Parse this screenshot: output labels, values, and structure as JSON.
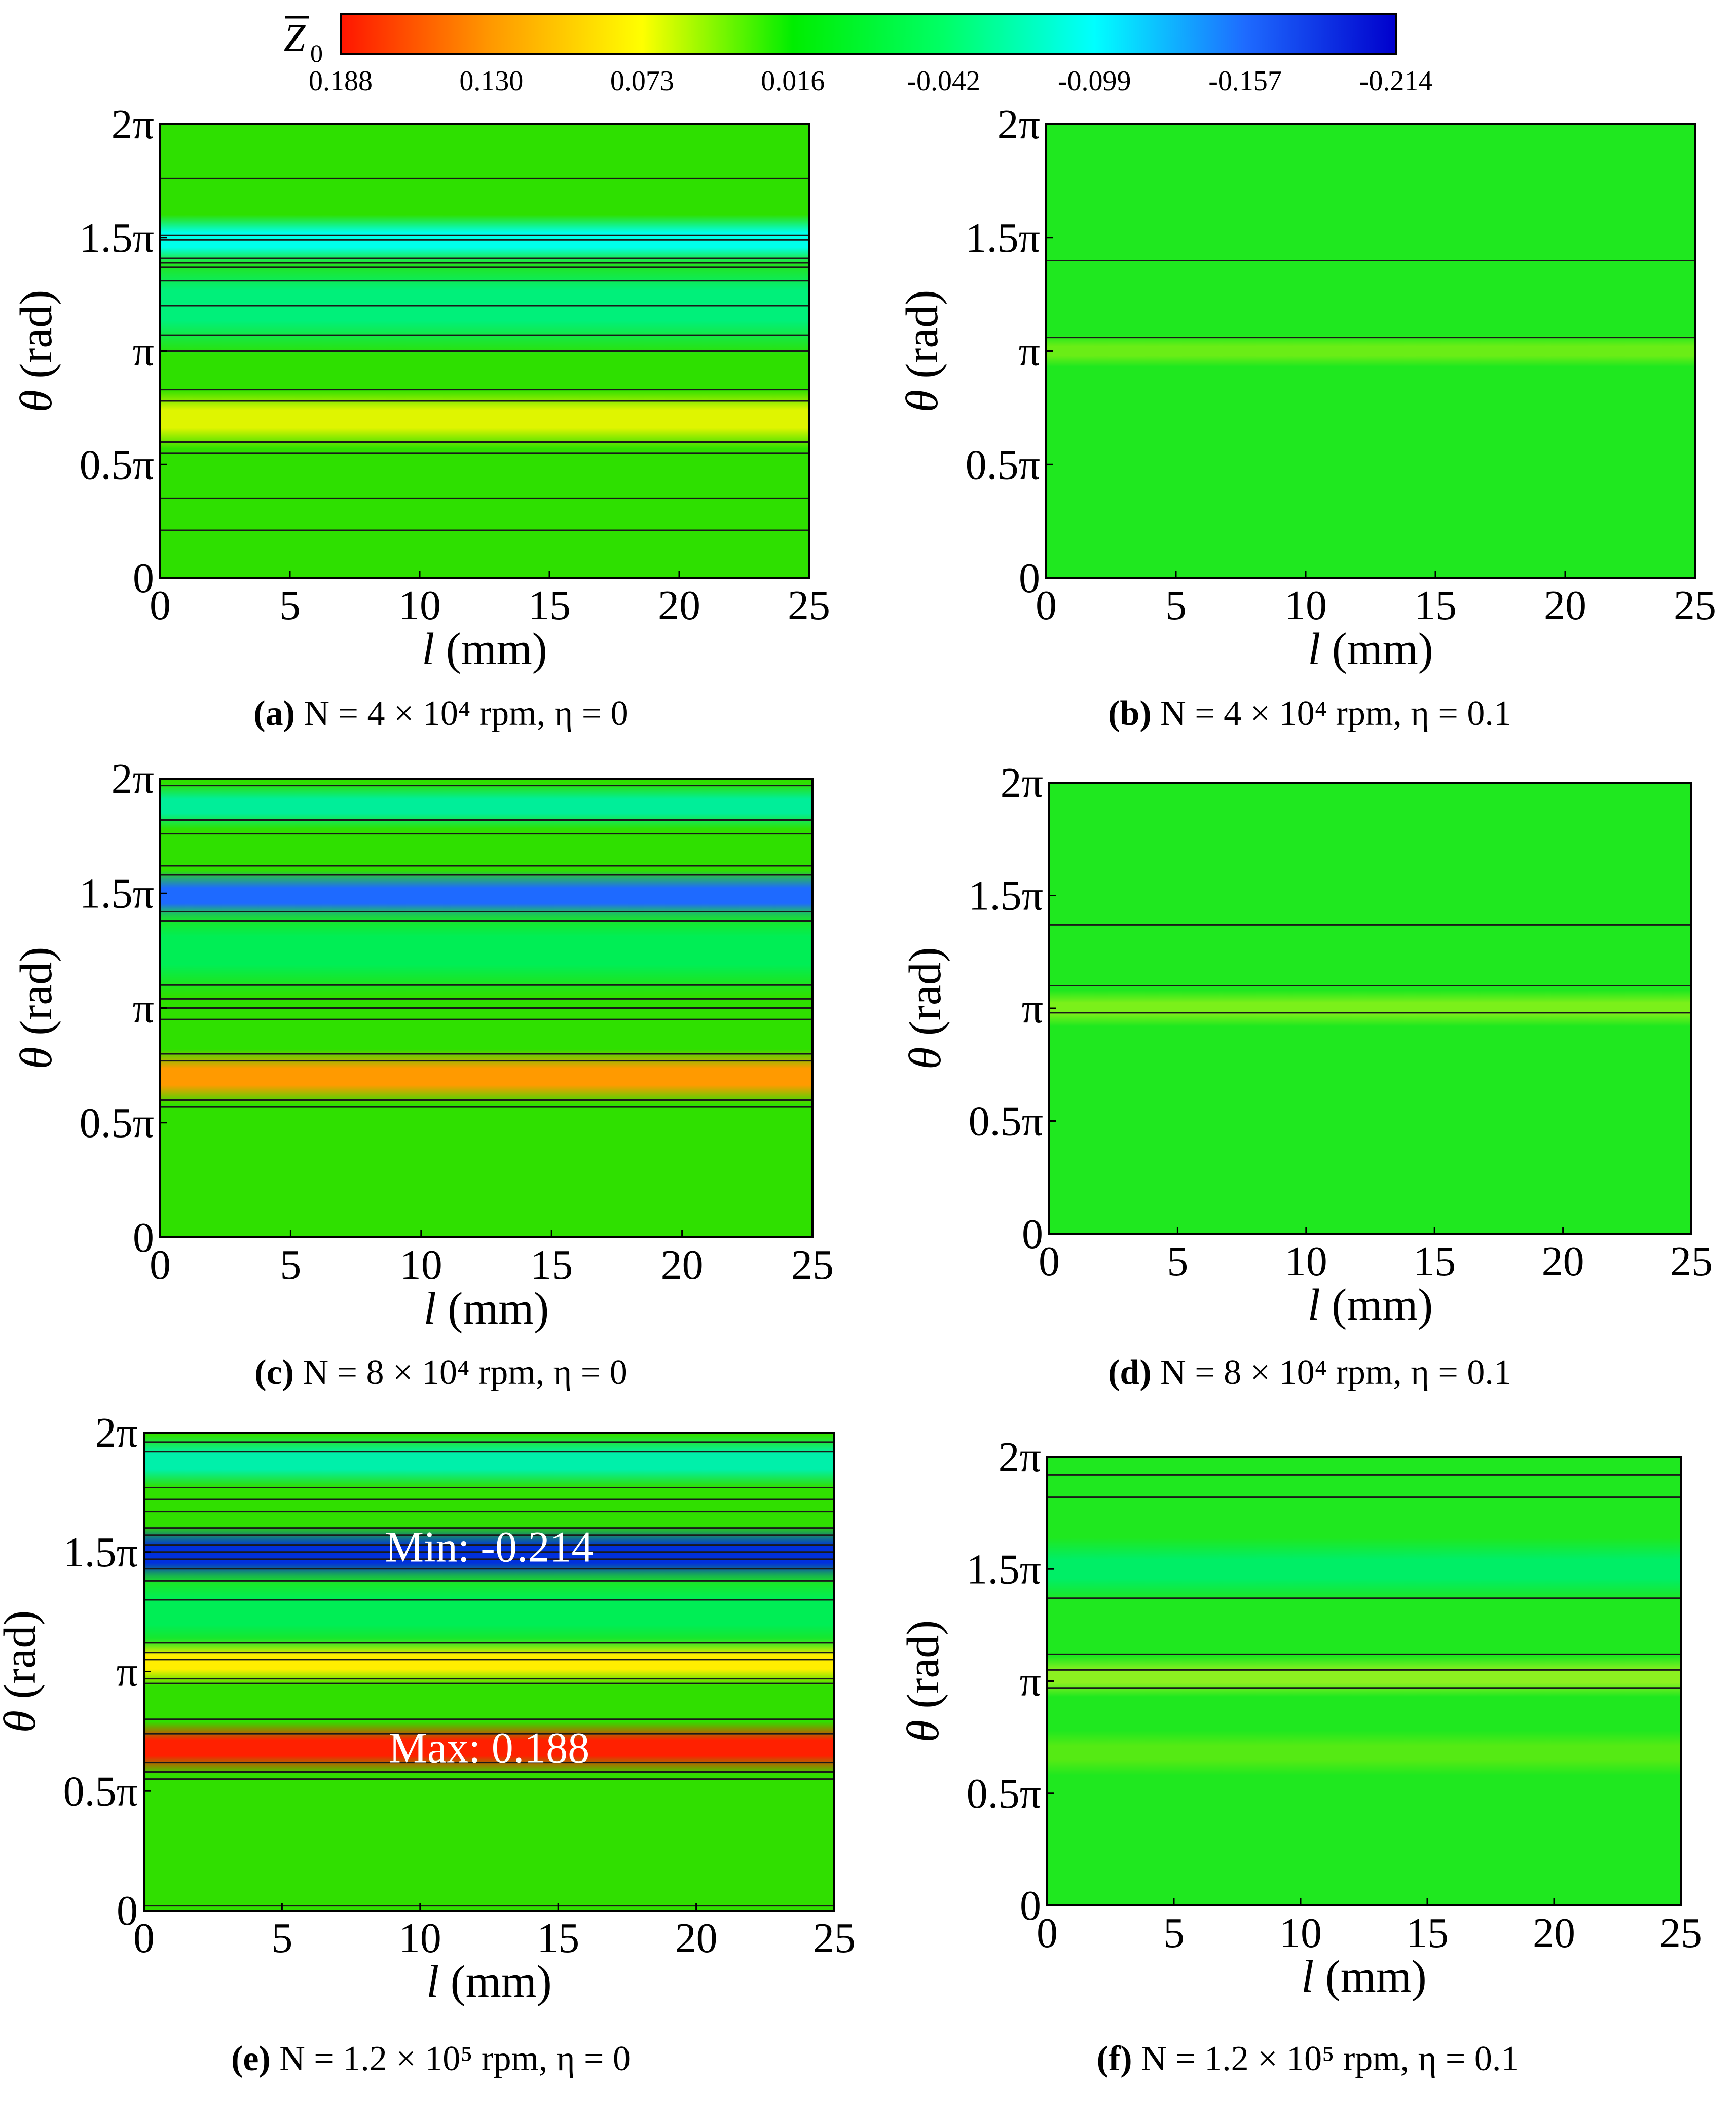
{
  "colorbar": {
    "symbol": "Z",
    "subscript": "0",
    "ticks": [
      "0.188",
      "0.130",
      "0.073",
      "0.016",
      "-0.042",
      "-0.099",
      "-0.157",
      "-0.214"
    ],
    "colors": [
      "#ff1500",
      "#ff9900",
      "#ffff00",
      "#00ee00",
      "#00ff66",
      "#00ffff",
      "#1e6bff",
      "#0000cc"
    ]
  },
  "axis_labels": {
    "x_var": "l",
    "x_unit": " (mm)",
    "y_var": "θ",
    "y_unit": " (rad)"
  },
  "chart_data": [
    {
      "type": "heatmap",
      "id": "a",
      "caption_label": "(a)",
      "caption_rest": " N = 4 × 10⁴ rpm, η = 0",
      "x_ticks": [
        "0",
        "5",
        "10",
        "15",
        "20",
        "25"
      ],
      "y_ticks": [
        "0",
        "0.5π",
        "π",
        "1.5π",
        "2π"
      ],
      "xlim": [
        0,
        25
      ],
      "ylim_pi": [
        0,
        2
      ],
      "background": "#2ee000",
      "bands": [
        {
          "y": 0.7,
          "w": 0.13,
          "color": "#dff500"
        },
        {
          "y": 1.2,
          "w": 0.22,
          "color": "#00f07a"
        },
        {
          "y": 1.49,
          "w": 0.11,
          "color": "#00ffea"
        }
      ],
      "contours_pi": [
        0.21,
        0.35,
        0.55,
        0.6,
        0.78,
        0.83,
        1.0,
        1.07,
        1.2,
        1.31,
        1.37,
        1.39,
        1.41,
        1.49,
        1.51,
        1.76
      ],
      "annotations": []
    },
    {
      "type": "heatmap",
      "id": "b",
      "caption_label": "(b)",
      "caption_rest": " N = 4 × 10⁴ rpm, η = 0.1",
      "x_ticks": [
        "0",
        "5",
        "10",
        "15",
        "20",
        "25"
      ],
      "y_ticks": [
        "0",
        "0.5π",
        "π",
        "1.5π",
        "2π"
      ],
      "xlim": [
        0,
        25
      ],
      "ylim_pi": [
        0,
        2
      ],
      "background": "#1fe81f",
      "bands": [
        {
          "y": 1.0,
          "w": 0.07,
          "color": "#6aed16"
        }
      ],
      "contours_pi": [
        1.06,
        1.4
      ],
      "annotations": []
    },
    {
      "type": "heatmap",
      "id": "c",
      "caption_label": "(c)",
      "caption_rest": " N = 8 × 10⁴ rpm, η = 0",
      "x_ticks": [
        "0",
        "5",
        "10",
        "15",
        "20",
        "25"
      ],
      "y_ticks": [
        "0",
        "0.5π",
        "π",
        "1.5π",
        "2π"
      ],
      "xlim": [
        0,
        25
      ],
      "ylim_pi": [
        0,
        2
      ],
      "background": "#2fe000",
      "bands": [
        {
          "y": 0.7,
          "w": 0.12,
          "color": "#ff9a00"
        },
        {
          "y": 1.49,
          "w": 0.11,
          "color": "#1e6aff"
        },
        {
          "y": 1.88,
          "w": 0.1,
          "color": "#00ee99"
        },
        {
          "y": 1.25,
          "w": 0.2,
          "color": "#00ee55"
        }
      ],
      "contours_pi": [
        0.57,
        0.6,
        0.77,
        0.8,
        0.95,
        1.0,
        1.04,
        1.1,
        1.38,
        1.42,
        1.58,
        1.62,
        1.76,
        1.82,
        1.97
      ],
      "annotations": []
    },
    {
      "type": "heatmap",
      "id": "d",
      "caption_label": "(d)",
      "caption_rest": " N = 8 × 10⁴ rpm, η = 0.1",
      "x_ticks": [
        "0",
        "5",
        "10",
        "15",
        "20",
        "25"
      ],
      "y_ticks": [
        "0",
        "0.5π",
        "π",
        "1.5π",
        "2π"
      ],
      "xlim": [
        0,
        25
      ],
      "ylim_pi": [
        0,
        2
      ],
      "background": "#1fe81f",
      "bands": [
        {
          "y": 1.0,
          "w": 0.08,
          "color": "#7bf01a"
        }
      ],
      "contours_pi": [
        0.98,
        1.1,
        1.37
      ],
      "annotations": []
    },
    {
      "type": "heatmap",
      "id": "e",
      "caption_label": "(e)",
      "caption_rest": " N = 1.2 × 10⁵ rpm, η = 0",
      "x_ticks": [
        "0",
        "5",
        "10",
        "15",
        "20",
        "25"
      ],
      "y_ticks": [
        "0",
        "0.5π",
        "π",
        "1.5π",
        "2π"
      ],
      "xlim": [
        0,
        25
      ],
      "ylim_pi": [
        0,
        2
      ],
      "background": "#30df00",
      "bands": [
        {
          "y": 0.68,
          "w": 0.11,
          "color": "#ff2000"
        },
        {
          "y": 1.04,
          "w": 0.1,
          "color": "#ffee00"
        },
        {
          "y": 1.49,
          "w": 0.12,
          "color": "#0030dd"
        },
        {
          "y": 1.88,
          "w": 0.11,
          "color": "#00f0aa"
        },
        {
          "y": 1.25,
          "w": 0.18,
          "color": "#00ee55"
        }
      ],
      "contours_pi": [
        0.02,
        0.55,
        0.58,
        0.62,
        0.74,
        0.8,
        0.95,
        0.97,
        1.05,
        1.08,
        1.12,
        1.3,
        1.38,
        1.43,
        1.47,
        1.5,
        1.53,
        1.57,
        1.6,
        1.67,
        1.72,
        1.77,
        1.92,
        1.96
      ],
      "annotations": [
        {
          "text": "Min: -0.214",
          "x": 12.5,
          "y_pi": 1.52
        },
        {
          "text": "Max: 0.188",
          "x": 12.5,
          "y_pi": 0.68
        }
      ]
    },
    {
      "type": "heatmap",
      "id": "f",
      "caption_label": "(f)",
      "caption_rest": " N = 1.2 × 10⁵ rpm, η = 0.1",
      "x_ticks": [
        "0",
        "5",
        "10",
        "15",
        "20",
        "25"
      ],
      "y_ticks": [
        "0",
        "0.5π",
        "π",
        "1.5π",
        "2π"
      ],
      "xlim": [
        0,
        25
      ],
      "ylim_pi": [
        0,
        2
      ],
      "background": "#1fe81f",
      "bands": [
        {
          "y": 1.02,
          "w": 0.09,
          "color": "#8cf020"
        },
        {
          "y": 1.5,
          "w": 0.14,
          "color": "#00ee66"
        },
        {
          "y": 0.68,
          "w": 0.1,
          "color": "#55ea14"
        }
      ],
      "contours_pi": [
        0.97,
        1.05,
        1.12,
        1.37,
        1.82,
        1.92
      ],
      "annotations": []
    }
  ]
}
